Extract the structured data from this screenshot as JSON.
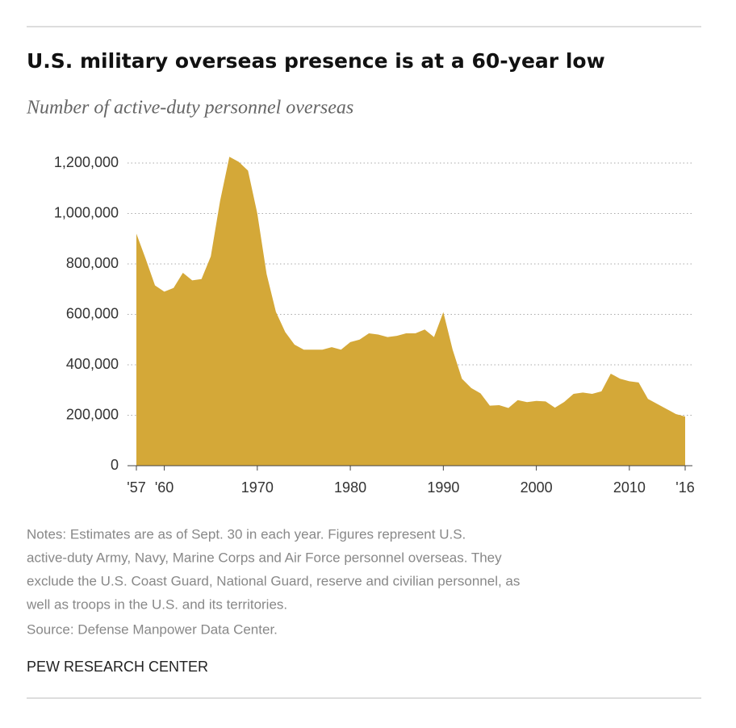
{
  "chart_data": {
    "type": "area",
    "title": "U.S. military overseas presence is at a 60-year low",
    "subtitle": "Number of active-duty personnel overseas",
    "x": [
      1957,
      1958,
      1959,
      1960,
      1961,
      1962,
      1963,
      1964,
      1965,
      1966,
      1967,
      1968,
      1969,
      1970,
      1971,
      1972,
      1973,
      1974,
      1975,
      1976,
      1977,
      1978,
      1979,
      1980,
      1981,
      1982,
      1983,
      1984,
      1985,
      1986,
      1987,
      1988,
      1989,
      1990,
      1991,
      1992,
      1993,
      1994,
      1995,
      1996,
      1997,
      1998,
      1999,
      2000,
      2001,
      2002,
      2003,
      2004,
      2005,
      2006,
      2007,
      2008,
      2009,
      2010,
      2011,
      2012,
      2013,
      2014,
      2015,
      2016
    ],
    "values": [
      920000,
      820000,
      715000,
      690000,
      705000,
      765000,
      735000,
      740000,
      830000,
      1050000,
      1225000,
      1205000,
      1170000,
      1000000,
      760000,
      610000,
      530000,
      480000,
      460000,
      460000,
      460000,
      470000,
      460000,
      490000,
      500000,
      525000,
      520000,
      510000,
      515000,
      525000,
      525000,
      540000,
      510000,
      609000,
      460000,
      345000,
      308000,
      287000,
      238000,
      240000,
      229000,
      260000,
      252000,
      257000,
      255000,
      230000,
      253000,
      285000,
      290000,
      285000,
      295000,
      365000,
      345000,
      335000,
      330000,
      265000,
      245000,
      225000,
      205000,
      195000
    ],
    "color": "#d4a838",
    "xlim": [
      1957,
      2016
    ],
    "xticks": [
      {
        "value": 1957,
        "label": "'57"
      },
      {
        "value": 1960,
        "label": "'60"
      },
      1970,
      1980,
      1990,
      2000,
      2010,
      {
        "value": 2016,
        "label": "'16"
      }
    ],
    "ylim": [
      0,
      1200000
    ],
    "yticks": [
      0,
      {
        "value": 200000,
        "label": "200,000"
      },
      {
        "value": 400000,
        "label": "400,000"
      },
      {
        "value": 600000,
        "label": "600,000"
      },
      {
        "value": 800000,
        "label": "800,000"
      },
      {
        "value": 1000000,
        "label": "1,000,000"
      },
      {
        "value": 1200000,
        "label": "1,200,000"
      }
    ],
    "grid": true,
    "notes": [
      "Notes: Estimates are as of Sept. 30 in each year. Figures represent U.S.",
      "active-duty Army, Navy, Marine Corps and Air Force personnel overseas. They",
      "exclude the U.S. Coast Guard, National Guard, reserve and civilian personnel, as",
      "well as troops in the U.S. and its territories."
    ],
    "source": "Source: Defense Manpower Data Center.",
    "credit": "PEW RESEARCH CENTER"
  }
}
